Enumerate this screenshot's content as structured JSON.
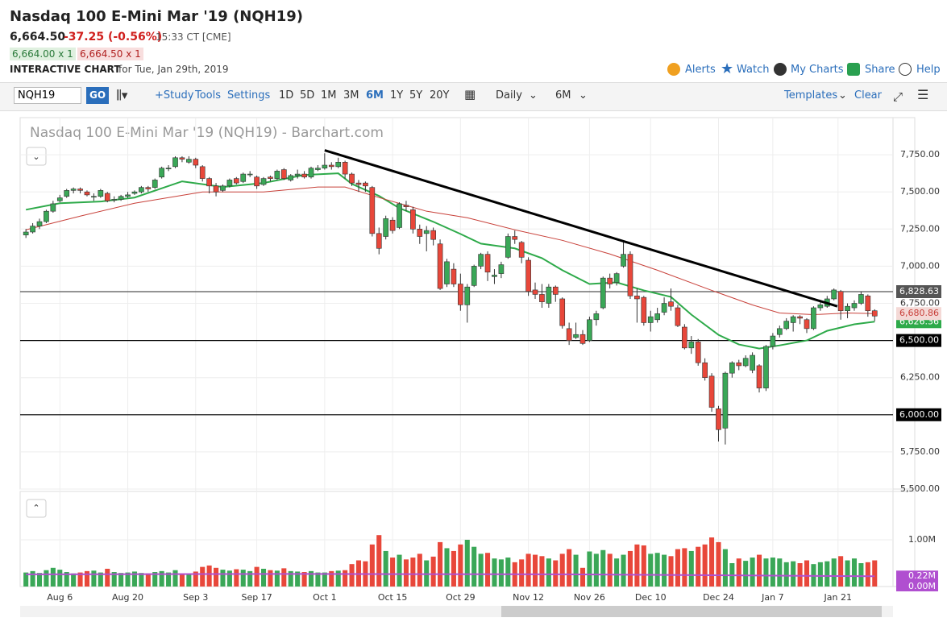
{
  "header": {
    "title": "Nasdaq 100 E-Mini Mar '19 (NQH19)",
    "last": "6,664.50",
    "change": "-37.25 (-0.56%)",
    "time": "15:33 CT [CME]",
    "bid": "6,664.00 x 1",
    "ask": "6,664.50 x 1",
    "label": "INTERACTIVE CHART",
    "date": "for Tue, Jan 29th, 2019",
    "links": [
      "Alerts",
      "Watch",
      "My Charts",
      "Share",
      "Help"
    ]
  },
  "toolbar": {
    "symbol": "NQH19",
    "go": "GO",
    "tools": [
      "+Study",
      "Tools",
      "Settings"
    ],
    "ranges": [
      "1D",
      "5D",
      "1M",
      "3M",
      "6M",
      "1Y",
      "5Y",
      "20Y"
    ],
    "active_range": "6M",
    "interval": "Daily",
    "period": "6M",
    "templates": "Templates",
    "clear": "Clear"
  },
  "chart_data": {
    "type": "candlestick",
    "title": "Nasdaq 100 E-Mini Mar '19 (NQH19) - Barchart.com",
    "up_color": "#3aa757",
    "down_color": "#e8473a",
    "ylim": [
      5500,
      8000
    ],
    "yticks": [
      {
        "value": 5500,
        "label": "5,500.00"
      },
      {
        "value": 5750,
        "label": "5,750.00"
      },
      {
        "value": 6000,
        "label": "6,000.00"
      },
      {
        "value": 6250,
        "label": "6,250.00"
      },
      {
        "value": 6500,
        "label": "6,500.00"
      },
      {
        "value": 6750,
        "label": "6,750.00"
      },
      {
        "value": 7000,
        "label": "7,000.00"
      },
      {
        "value": 7250,
        "label": "7,250.00"
      },
      {
        "value": 7500,
        "label": "7,500.00"
      },
      {
        "value": 7750,
        "label": "7,750.00"
      }
    ],
    "xlim": [
      -0.85,
      127.7
    ],
    "xticks": [
      {
        "value": 5,
        "label": "Aug 6"
      },
      {
        "value": 15,
        "label": "Aug 20"
      },
      {
        "value": 25,
        "label": "Sep 3"
      },
      {
        "value": 34,
        "label": "Sep 17"
      },
      {
        "value": 44,
        "label": "Oct 1"
      },
      {
        "value": 54,
        "label": "Oct 15"
      },
      {
        "value": 64,
        "label": "Oct 29"
      },
      {
        "value": 74,
        "label": "Nov 12"
      },
      {
        "value": 83,
        "label": "Nov 26"
      },
      {
        "value": 92,
        "label": "Dec 10"
      },
      {
        "value": 102,
        "label": "Dec 24"
      },
      {
        "value": 110,
        "label": "Jan 7"
      },
      {
        "value": 119.6,
        "label": "Jan 21"
      }
    ],
    "ohlc": [
      [
        7210,
        7250,
        7190,
        7230
      ],
      [
        7230,
        7290,
        7220,
        7270
      ],
      [
        7270,
        7320,
        7250,
        7300
      ],
      [
        7300,
        7380,
        7290,
        7370
      ],
      [
        7370,
        7440,
        7360,
        7420
      ],
      [
        7440,
        7480,
        7430,
        7460
      ],
      [
        7470,
        7520,
        7460,
        7510
      ],
      [
        7510,
        7530,
        7490,
        7520
      ],
      [
        7520,
        7530,
        7490,
        7510
      ],
      [
        7500,
        7510,
        7470,
        7480
      ],
      [
        7470,
        7490,
        7440,
        7470
      ],
      [
        7470,
        7520,
        7460,
        7510
      ],
      [
        7490,
        7500,
        7430,
        7440
      ],
      [
        7450,
        7470,
        7430,
        7450
      ],
      [
        7450,
        7480,
        7440,
        7470
      ],
      [
        7470,
        7500,
        7460,
        7480
      ],
      [
        7490,
        7510,
        7480,
        7500
      ],
      [
        7500,
        7540,
        7490,
        7530
      ],
      [
        7530,
        7540,
        7500,
        7520
      ],
      [
        7530,
        7590,
        7520,
        7580
      ],
      [
        7600,
        7670,
        7590,
        7660
      ],
      [
        7660,
        7680,
        7640,
        7660
      ],
      [
        7670,
        7740,
        7660,
        7730
      ],
      [
        7730,
        7740,
        7700,
        7720
      ],
      [
        7700,
        7740,
        7690,
        7720
      ],
      [
        7720,
        7730,
        7660,
        7680
      ],
      [
        7670,
        7680,
        7570,
        7590
      ],
      [
        7590,
        7600,
        7490,
        7540
      ],
      [
        7540,
        7560,
        7470,
        7500
      ],
      [
        7510,
        7550,
        7500,
        7540
      ],
      [
        7540,
        7590,
        7530,
        7580
      ],
      [
        7590,
        7600,
        7550,
        7560
      ],
      [
        7570,
        7630,
        7560,
        7620
      ],
      [
        7620,
        7640,
        7600,
        7620
      ],
      [
        7600,
        7610,
        7520,
        7540
      ],
      [
        7550,
        7600,
        7540,
        7590
      ],
      [
        7600,
        7610,
        7570,
        7590
      ],
      [
        7590,
        7650,
        7580,
        7640
      ],
      [
        7650,
        7660,
        7580,
        7590
      ],
      [
        7580,
        7620,
        7570,
        7610
      ],
      [
        7610,
        7650,
        7590,
        7620
      ],
      [
        7620,
        7640,
        7590,
        7600
      ],
      [
        7600,
        7670,
        7590,
        7660
      ],
      [
        7650,
        7680,
        7640,
        7660
      ],
      [
        7660,
        7760,
        7650,
        7680
      ],
      [
        7680,
        7700,
        7650,
        7670
      ],
      [
        7670,
        7730,
        7660,
        7700
      ],
      [
        7700,
        7710,
        7590,
        7620
      ],
      [
        7620,
        7630,
        7540,
        7560
      ],
      [
        7560,
        7580,
        7500,
        7550
      ],
      [
        7560,
        7570,
        7500,
        7540
      ],
      [
        7530,
        7540,
        7200,
        7220
      ],
      [
        7220,
        7260,
        7080,
        7120
      ],
      [
        7200,
        7340,
        7180,
        7320
      ],
      [
        7310,
        7330,
        7220,
        7240
      ],
      [
        7260,
        7430,
        7250,
        7420
      ],
      [
        7410,
        7440,
        7370,
        7400
      ],
      [
        7380,
        7400,
        7220,
        7250
      ],
      [
        7250,
        7280,
        7150,
        7200
      ],
      [
        7220,
        7270,
        7100,
        7240
      ],
      [
        7240,
        7260,
        7140,
        7180
      ],
      [
        7150,
        7180,
        6840,
        6850
      ],
      [
        6880,
        7050,
        6860,
        7030
      ],
      [
        6980,
        7020,
        6860,
        6880
      ],
      [
        6880,
        6950,
        6700,
        6740
      ],
      [
        6740,
        6880,
        6620,
        6860
      ],
      [
        6870,
        7010,
        6860,
        7000
      ],
      [
        7000,
        7090,
        6980,
        7080
      ],
      [
        7080,
        7100,
        6900,
        6960
      ],
      [
        6930,
        6980,
        6880,
        6940
      ],
      [
        6950,
        7030,
        6920,
        7010
      ],
      [
        7060,
        7220,
        7050,
        7200
      ],
      [
        7200,
        7240,
        7150,
        7180
      ],
      [
        7160,
        7170,
        7020,
        7060
      ],
      [
        7040,
        7060,
        6800,
        6830
      ],
      [
        6840,
        6890,
        6780,
        6810
      ],
      [
        6810,
        6880,
        6720,
        6760
      ],
      [
        6750,
        6880,
        6720,
        6860
      ],
      [
        6860,
        6870,
        6760,
        6810
      ],
      [
        6780,
        6790,
        6580,
        6600
      ],
      [
        6580,
        6620,
        6470,
        6500
      ],
      [
        6520,
        6620,
        6510,
        6540
      ],
      [
        6540,
        6570,
        6470,
        6480
      ],
      [
        6500,
        6660,
        6490,
        6640
      ],
      [
        6640,
        6700,
        6600,
        6680
      ],
      [
        6720,
        6930,
        6710,
        6920
      ],
      [
        6920,
        6950,
        6850,
        6880
      ],
      [
        6890,
        6960,
        6870,
        6950
      ],
      [
        7000,
        7160,
        6990,
        7080
      ],
      [
        7080,
        7100,
        6780,
        6800
      ],
      [
        6800,
        6850,
        6620,
        6780
      ],
      [
        6790,
        6800,
        6600,
        6620
      ],
      [
        6620,
        6700,
        6560,
        6660
      ],
      [
        6640,
        6720,
        6620,
        6680
      ],
      [
        6690,
        6790,
        6670,
        6750
      ],
      [
        6760,
        6850,
        6700,
        6730
      ],
      [
        6720,
        6740,
        6590,
        6600
      ],
      [
        6590,
        6610,
        6440,
        6450
      ],
      [
        6450,
        6530,
        6410,
        6490
      ],
      [
        6490,
        6510,
        6330,
        6350
      ],
      [
        6350,
        6380,
        6230,
        6250
      ],
      [
        6260,
        6280,
        6020,
        6050
      ],
      [
        6040,
        6060,
        5820,
        5900
      ],
      [
        5910,
        6290,
        5800,
        6280
      ],
      [
        6280,
        6360,
        6250,
        6350
      ],
      [
        6350,
        6370,
        6300,
        6330
      ],
      [
        6330,
        6400,
        6320,
        6380
      ],
      [
        6300,
        6420,
        6280,
        6400
      ],
      [
        6330,
        6340,
        6150,
        6180
      ],
      [
        6180,
        6470,
        6160,
        6460
      ],
      [
        6460,
        6550,
        6440,
        6530
      ],
      [
        6540,
        6600,
        6520,
        6580
      ],
      [
        6580,
        6650,
        6570,
        6630
      ],
      [
        6620,
        6670,
        6560,
        6660
      ],
      [
        6660,
        6670,
        6610,
        6650
      ],
      [
        6640,
        6650,
        6550,
        6580
      ],
      [
        6580,
        6730,
        6570,
        6720
      ],
      [
        6720,
        6760,
        6700,
        6740
      ],
      [
        6730,
        6800,
        6720,
        6780
      ],
      [
        6780,
        6850,
        6770,
        6840
      ],
      [
        6830,
        6840,
        6640,
        6700
      ],
      [
        6700,
        6750,
        6650,
        6730
      ],
      [
        6720,
        6770,
        6700,
        6750
      ],
      [
        6750,
        6830,
        6740,
        6810
      ],
      [
        6800,
        6810,
        6660,
        6700
      ],
      [
        6700,
        6710,
        6630,
        6664.5
      ]
    ],
    "moving_averages": [
      {
        "color": "#2eaa4a",
        "x": [
          0,
          5,
          11,
          16,
          23,
          29,
          35,
          41,
          46,
          48,
          52,
          55,
          60,
          64,
          67,
          72,
          76,
          79,
          83,
          87,
          91,
          95,
          98,
          102,
          105,
          108,
          111,
          115,
          118,
          122,
          125
        ],
        "values": [
          7380,
          7424,
          7435,
          7462,
          7571,
          7533,
          7560,
          7614,
          7625,
          7554,
          7473,
          7391,
          7299,
          7217,
          7152,
          7120,
          7054,
          6973,
          6880,
          6891,
          6837,
          6793,
          6674,
          6538,
          6473,
          6446,
          6467,
          6500,
          6565,
          6609,
          6626.36
        ],
        "value_labels": [
          null,
          null,
          null,
          null,
          null,
          null,
          null,
          null,
          null,
          null,
          null,
          null,
          null,
          null,
          null,
          null,
          null,
          null,
          null,
          null,
          null,
          null,
          null,
          null,
          null,
          null,
          null,
          null,
          null,
          null,
          "6,626.36"
        ]
      },
      {
        "color": "#c8413a",
        "x": [
          0,
          8,
          16,
          26,
          35,
          43,
          47,
          52,
          59,
          65,
          72,
          79,
          86,
          93,
          101,
          107,
          111,
          116,
          121,
          125
        ],
        "values": [
          7245,
          7337,
          7424,
          7500,
          7500,
          7533,
          7533,
          7462,
          7370,
          7326,
          7245,
          7174,
          7082,
          6973,
          6837,
          6739,
          6685,
          6674,
          6685,
          6680.86
        ],
        "value_labels": [
          null,
          null,
          null,
          null,
          null,
          null,
          null,
          null,
          null,
          null,
          null,
          null,
          null,
          null,
          null,
          null,
          null,
          null,
          null,
          "6,680.86"
        ]
      }
    ],
    "levels": [
      {
        "value": 6828.63,
        "label": "6,828.63",
        "color": "#555555"
      },
      {
        "value": 6500,
        "label": "6,500.00",
        "color": "#000000"
      },
      {
        "value": 6000,
        "label": "6,000.00",
        "color": "#000000"
      }
    ],
    "trendline": {
      "x": [
        44,
        119.5
      ],
      "values": [
        7780,
        6730
      ]
    },
    "volume": {
      "ylim": [
        0,
        2000000
      ],
      "yticks": [
        {
          "value": 0,
          "label": "0.00M"
        },
        {
          "value": 1000000,
          "label": "1.00M"
        }
      ],
      "values": [
        300000,
        330000,
        290000,
        350000,
        400000,
        360000,
        310000,
        280000,
        300000,
        330000,
        340000,
        300000,
        380000,
        310000,
        290000,
        300000,
        320000,
        290000,
        280000,
        310000,
        330000,
        300000,
        350000,
        280000,
        260000,
        320000,
        420000,
        450000,
        400000,
        360000,
        340000,
        370000,
        360000,
        330000,
        420000,
        380000,
        350000,
        340000,
        390000,
        330000,
        320000,
        310000,
        330000,
        300000,
        300000,
        330000,
        340000,
        350000,
        480000,
        560000,
        540000,
        900000,
        1100000,
        760000,
        620000,
        680000,
        580000,
        620000,
        700000,
        560000,
        640000,
        950000,
        820000,
        760000,
        900000,
        1000000,
        850000,
        700000,
        720000,
        600000,
        580000,
        620000,
        520000,
        580000,
        700000,
        680000,
        650000,
        600000,
        560000,
        700000,
        800000,
        680000,
        400000,
        750000,
        700000,
        780000,
        700000,
        600000,
        680000,
        760000,
        900000,
        880000,
        700000,
        720000,
        680000,
        650000,
        800000,
        820000,
        760000,
        850000,
        900000,
        1050000,
        950000,
        800000,
        500000,
        600000,
        550000,
        620000,
        680000,
        600000,
        620000,
        600000,
        520000,
        540000,
        500000,
        560000,
        480000,
        520000,
        540000,
        600000,
        650000,
        560000,
        600000,
        500000,
        520000,
        560000
      ],
      "ma": {
        "color": "#b04fd0",
        "x": [
          0,
          40,
          80,
          125
        ],
        "values": [
          260000,
          270000,
          260000,
          220000
        ],
        "value_labels": [
          null,
          null,
          null,
          "0.22M"
        ]
      }
    }
  }
}
